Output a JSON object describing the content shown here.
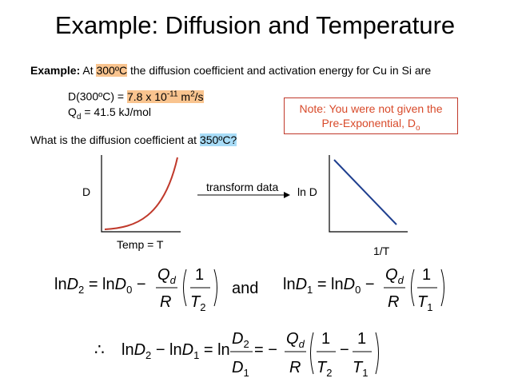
{
  "title": "Example: Diffusion and Temperature",
  "intro": {
    "label": "Example:",
    "pre": " At ",
    "temp1": "300ºC",
    "post": " the diffusion coefficient and activation energy for Cu in Si are"
  },
  "given": {
    "d_label": "D(300ºC) = ",
    "d_value_mantissa": "7.8 x 10",
    "d_value_exp": "-11",
    "d_value_unit": " m",
    "d_value_unit_exp": "2",
    "d_value_unit_tail": "/s",
    "q_label": "Q",
    "q_sub": "d",
    "q_value": " = 41.5 kJ/mol"
  },
  "question": {
    "pre": "What is the diffusion coefficient at ",
    "temp2": "350ºC?"
  },
  "note": {
    "line1": "Note: You were not given the",
    "line2": "Pre-Exponential, D",
    "line2_sub": "o"
  },
  "plot_left": {
    "ylabel": "D",
    "xlabel": "Temp = T"
  },
  "arrow_label": "transform data",
  "plot_right": {
    "ylabel": "ln D",
    "xlabel": "1/T"
  },
  "equations": {
    "and": "and",
    "therefore": "∴"
  },
  "colors": {
    "orange_highlight": "#f9c48f",
    "blue_highlight": "#a8dcf7",
    "note_red": "#d84a2a",
    "curve_red": "#c0392b",
    "line_blue": "#1f3f8f"
  }
}
